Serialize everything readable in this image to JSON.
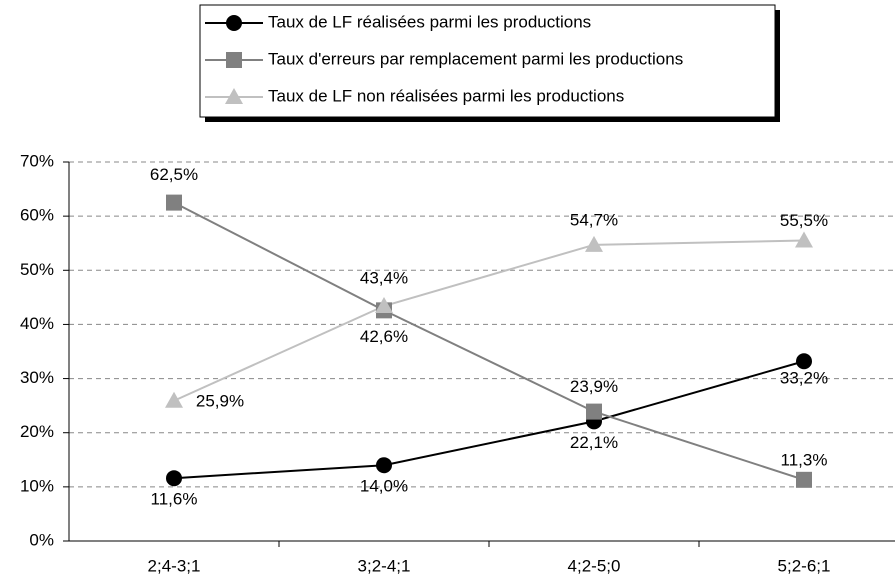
{
  "chart_data": {
    "type": "line",
    "categories": [
      "2;4-3;1",
      "3;2-4;1",
      "4;2-5;0",
      "5;2-6;1"
    ],
    "series": [
      {
        "name": "Taux de LF réalisées parmi les productions",
        "color": "#000000",
        "marker": "circle",
        "values": [
          11.6,
          14.0,
          22.1,
          33.2
        ],
        "value_labels": [
          "11,6%",
          "14,0%",
          "22,1%",
          "33,2%"
        ]
      },
      {
        "name": "Taux d'erreurs par remplacement parmi les productions",
        "color": "#808080",
        "marker": "square",
        "values": [
          62.5,
          42.6,
          23.9,
          11.3
        ],
        "value_labels": [
          "62,5%",
          "42,6%",
          "23,9%",
          "11,3%"
        ]
      },
      {
        "name": "Taux de LF non réalisées parmi les productions",
        "color": "#c0c0c0",
        "marker": "triangle",
        "values": [
          25.9,
          43.4,
          54.7,
          55.5
        ],
        "value_labels": [
          "25,9%",
          "43,4%",
          "54,7%",
          "55,5%"
        ]
      }
    ],
    "ylim": [
      0,
      70
    ],
    "yticks": [
      {
        "value": 0,
        "label": "0%"
      },
      {
        "value": 10,
        "label": "10%"
      },
      {
        "value": 20,
        "label": "20%"
      },
      {
        "value": 30,
        "label": "30%"
      },
      {
        "value": 40,
        "label": "40%"
      },
      {
        "value": 50,
        "label": "50%"
      },
      {
        "value": 60,
        "label": "60%"
      },
      {
        "value": 70,
        "label": "70%"
      }
    ],
    "grid": true,
    "legend": "top"
  }
}
